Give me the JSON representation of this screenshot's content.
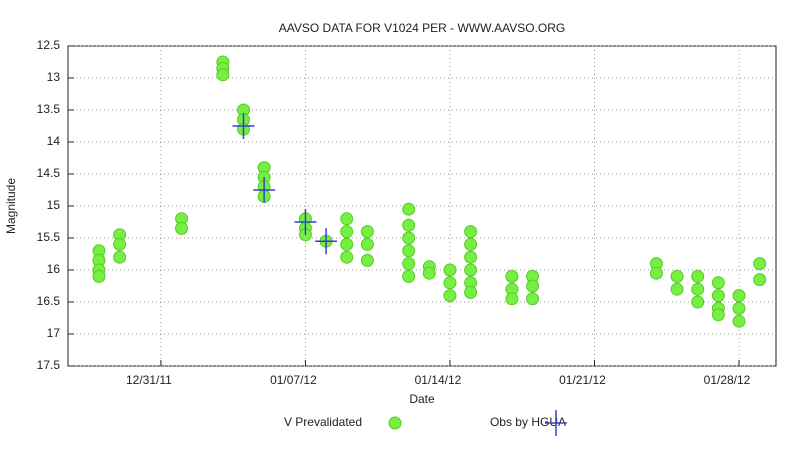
{
  "chart_data": {
    "type": "scatter",
    "title": "AAVSO DATA FOR V1024 PER - WWW.AAVSO.ORG",
    "x_label": "Date",
    "y_label": "Magnitude",
    "xlim": [
      "2011-12-26T12:00",
      "2012-01-29T19:00"
    ],
    "xticks": [
      {
        "value": "2011-12-31",
        "label": "12/31/11"
      },
      {
        "value": "2012-01-07",
        "label": "01/07/12"
      },
      {
        "value": "2012-01-14",
        "label": "01/14/12"
      },
      {
        "value": "2012-01-21",
        "label": "01/21/12"
      },
      {
        "value": "2012-01-28",
        "label": "01/28/12"
      }
    ],
    "ylim": [
      17.5,
      12.5
    ],
    "yticks": [
      12.5,
      13,
      13.5,
      14,
      14.5,
      15,
      15.5,
      16,
      16.5,
      17,
      17.5
    ],
    "grid": true,
    "legend": "bottom",
    "series": [
      {
        "name": "V Prevalidated",
        "color": "#77ee44",
        "marker": "circle",
        "x": [
          "2011-12-28",
          "2011-12-28",
          "2011-12-28",
          "2011-12-28",
          "2011-12-29",
          "2011-12-29",
          "2011-12-29",
          "2012-01-01",
          "2012-01-01",
          "2012-01-03",
          "2012-01-03",
          "2012-01-03",
          "2012-01-04",
          "2012-01-04",
          "2012-01-04",
          "2012-01-05",
          "2012-01-05",
          "2012-01-05",
          "2012-01-05",
          "2012-01-07",
          "2012-01-07",
          "2012-01-07",
          "2012-01-08",
          "2012-01-09",
          "2012-01-09",
          "2012-01-09",
          "2012-01-09",
          "2012-01-10",
          "2012-01-10",
          "2012-01-10",
          "2012-01-12",
          "2012-01-12",
          "2012-01-12",
          "2012-01-12",
          "2012-01-12",
          "2012-01-12",
          "2012-01-13",
          "2012-01-13",
          "2012-01-14",
          "2012-01-14",
          "2012-01-14",
          "2012-01-15",
          "2012-01-15",
          "2012-01-15",
          "2012-01-15",
          "2012-01-15",
          "2012-01-15",
          "2012-01-17",
          "2012-01-17",
          "2012-01-17",
          "2012-01-18",
          "2012-01-18",
          "2012-01-18",
          "2012-01-24",
          "2012-01-24",
          "2012-01-25",
          "2012-01-25",
          "2012-01-26",
          "2012-01-26",
          "2012-01-26",
          "2012-01-27",
          "2012-01-27",
          "2012-01-27",
          "2012-01-27",
          "2012-01-28",
          "2012-01-28",
          "2012-01-28",
          "2012-01-29",
          "2012-01-29"
        ],
        "values": [
          15.7,
          15.85,
          16.0,
          16.1,
          15.45,
          15.6,
          15.8,
          15.2,
          15.35,
          12.75,
          12.85,
          12.95,
          13.5,
          13.65,
          13.8,
          14.4,
          14.55,
          14.7,
          14.85,
          15.2,
          15.35,
          15.45,
          15.55,
          15.2,
          15.4,
          15.6,
          15.8,
          15.4,
          15.6,
          15.85,
          15.05,
          15.3,
          15.5,
          15.7,
          15.9,
          16.1,
          15.95,
          16.05,
          16.0,
          16.2,
          16.4,
          15.4,
          15.6,
          15.8,
          16.0,
          16.2,
          16.35,
          16.1,
          16.3,
          16.45,
          16.1,
          16.25,
          16.45,
          15.9,
          16.05,
          16.1,
          16.3,
          16.1,
          16.3,
          16.5,
          16.2,
          16.4,
          16.6,
          16.7,
          16.4,
          16.6,
          16.8,
          15.9,
          16.15
        ]
      },
      {
        "name": "Obs by HGUA",
        "color": "#3344cc",
        "marker": "cross",
        "x": [
          "2012-01-04",
          "2012-01-05",
          "2012-01-07",
          "2012-01-08"
        ],
        "values": [
          13.75,
          14.75,
          15.25,
          15.55
        ]
      }
    ]
  }
}
